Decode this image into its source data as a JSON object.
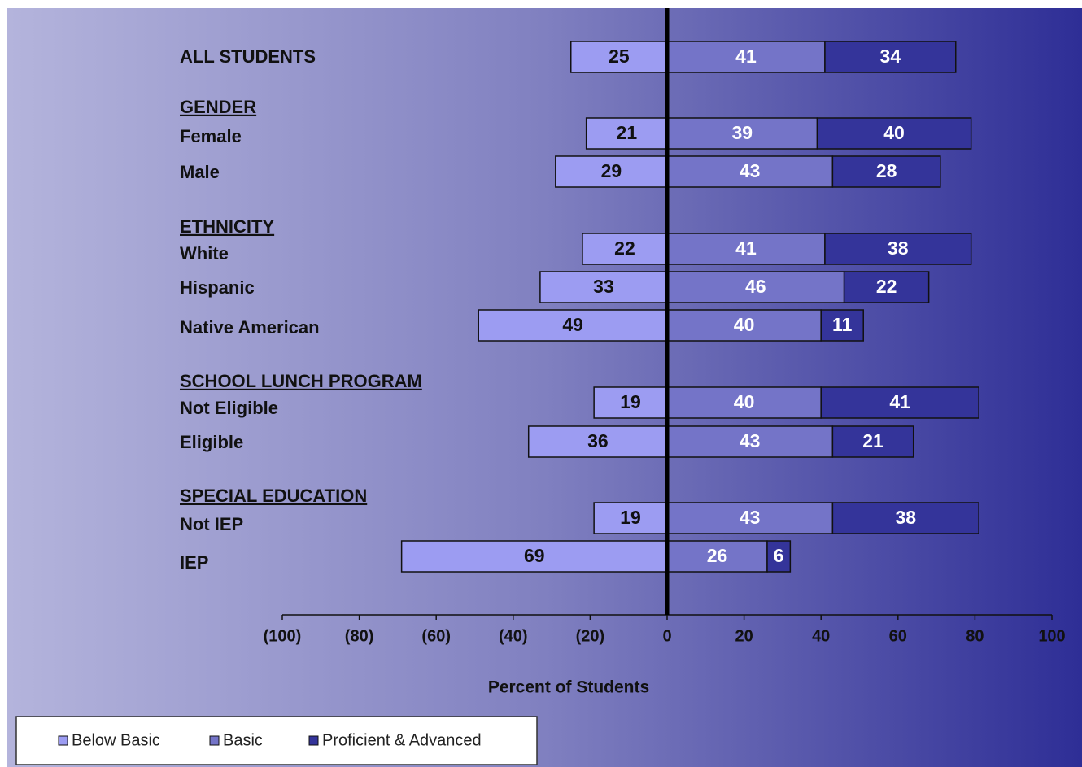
{
  "chart_data": {
    "type": "bar",
    "orientation": "horizontal",
    "stacked": true,
    "categories": [
      "ALL STUDENTS",
      "Female",
      "Male",
      "White",
      "Hispanic",
      "Native American",
      "Not Eligible",
      "Eligible",
      "Not IEP",
      "IEP"
    ],
    "groups": [
      {
        "name": "GENDER",
        "categories": [
          1,
          2
        ]
      },
      {
        "name": "ETHNICITY",
        "categories": [
          3,
          4,
          5
        ]
      },
      {
        "name": "SCHOOL LUNCH PROGRAM",
        "categories": [
          6,
          7
        ]
      },
      {
        "name": "SPECIAL EDUCATION",
        "categories": [
          8,
          9
        ]
      }
    ],
    "series": [
      {
        "name": "Below Basic",
        "color": "#9c9cf2",
        "values": [
          -25,
          -21,
          -29,
          -22,
          -33,
          -49,
          -19,
          -36,
          -19,
          -69
        ],
        "value_labels": [
          "25",
          "21",
          "29",
          "22",
          "33",
          "49",
          "19",
          "36",
          "19",
          "69"
        ]
      },
      {
        "name": "Basic",
        "color": "#7474c8",
        "values": [
          41,
          39,
          43,
          41,
          46,
          40,
          40,
          43,
          43,
          26
        ]
      },
      {
        "name": "Proficient & Advanced",
        "color": "#34349a",
        "values": [
          34,
          40,
          28,
          38,
          22,
          11,
          41,
          21,
          38,
          6
        ]
      }
    ],
    "xlabel": "Percent of Students",
    "xlim": [
      -100,
      100
    ],
    "xticks": [
      {
        "value": -100,
        "label": "(100)"
      },
      {
        "value": -80,
        "label": "(80)"
      },
      {
        "value": -60,
        "label": "(60)"
      },
      {
        "value": -40,
        "label": "(40)"
      },
      {
        "value": -20,
        "label": "(20)"
      },
      0,
      20,
      40,
      60,
      80,
      100
    ],
    "legend": "bottom-left"
  }
}
